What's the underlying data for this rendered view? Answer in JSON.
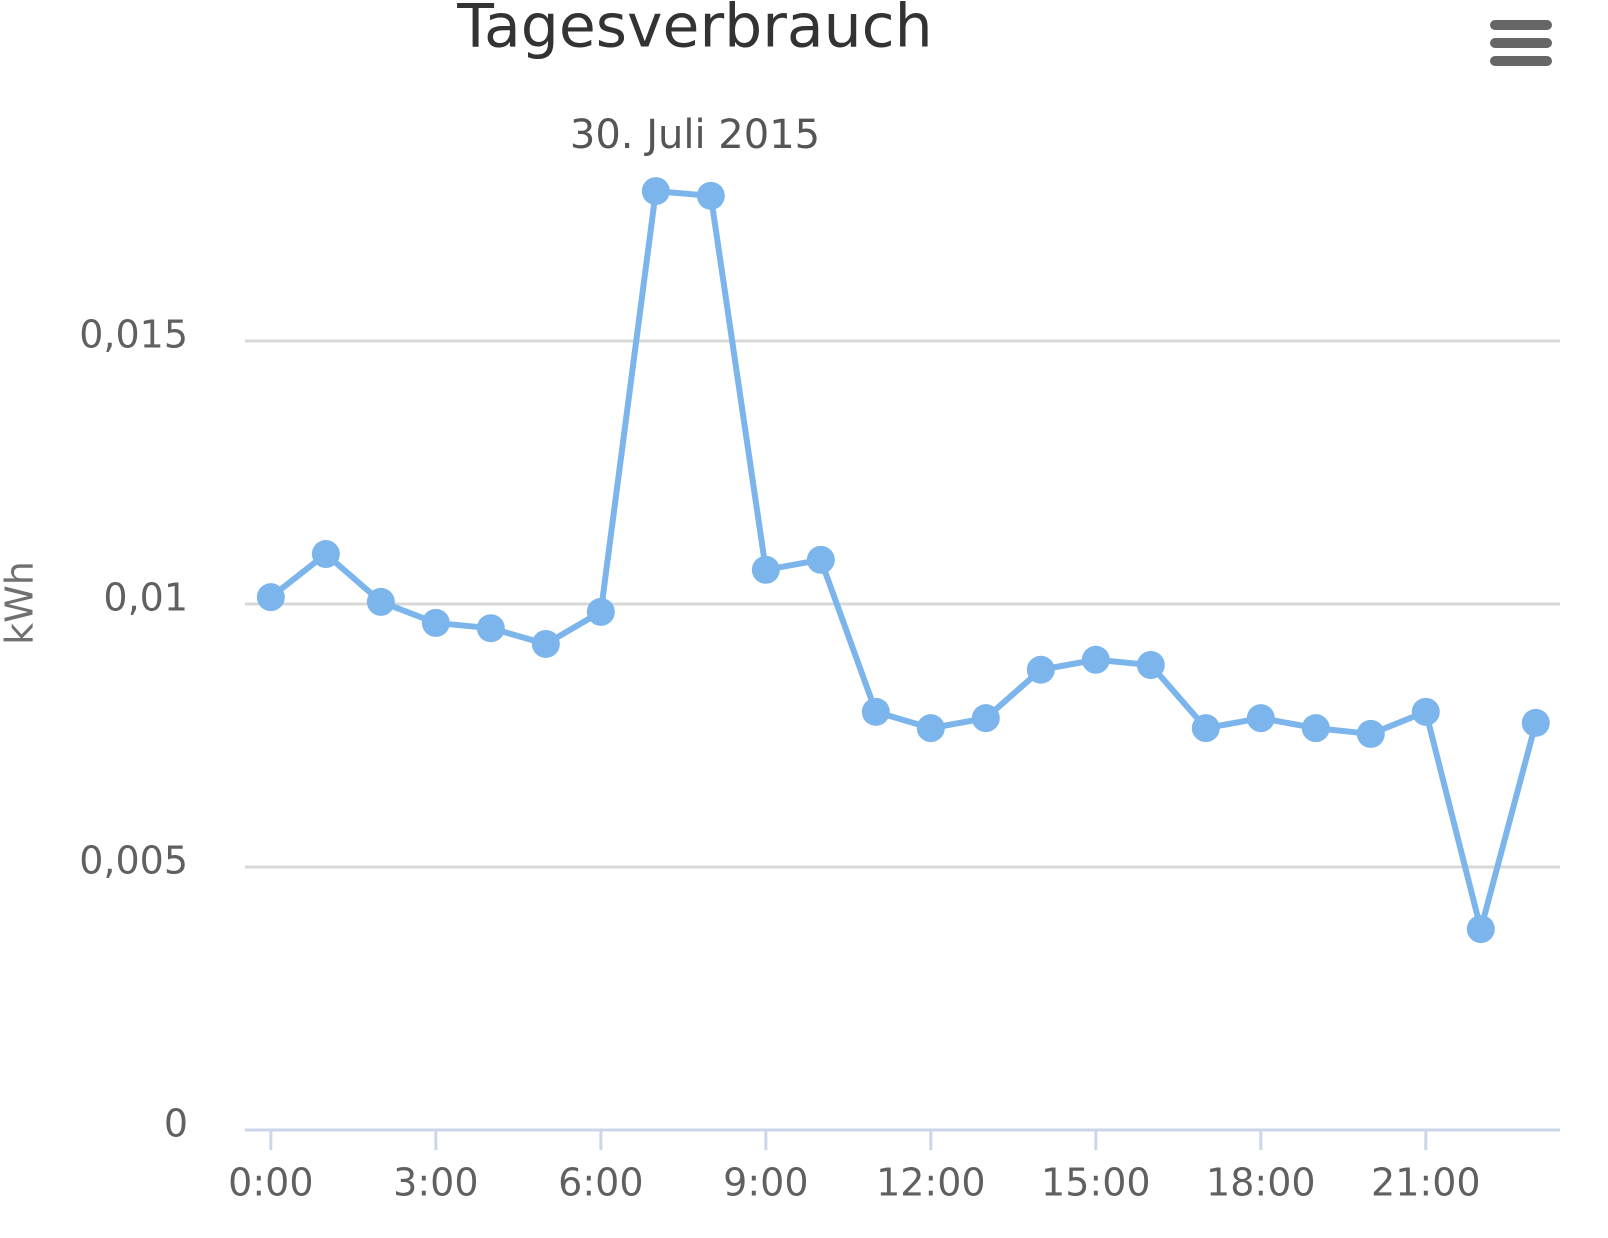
{
  "chart_data": {
    "type": "line",
    "title": "Tagesverbrauch",
    "subtitle": "30. Juli 2015",
    "y_axis_label": "kWh",
    "x": [
      0,
      1,
      2,
      3,
      4,
      5,
      6,
      7,
      8,
      9,
      10,
      11,
      12,
      13,
      14,
      15,
      16,
      17,
      18,
      19,
      20,
      21,
      22,
      23
    ],
    "series": [
      {
        "color": "#7cb5ec",
        "values": [
          0.01013,
          0.01095,
          0.01004,
          0.00964,
          0.00954,
          0.00924,
          0.00985,
          0.01785,
          0.01776,
          0.01065,
          0.01084,
          0.00795,
          0.00764,
          0.00783,
          0.00875,
          0.00894,
          0.00884,
          0.00764,
          0.00783,
          0.00764,
          0.00753,
          0.00795,
          0.00382,
          0.00774
        ]
      }
    ],
    "xlim": [
      -0.47,
      23.44
    ],
    "xticks": [
      {
        "value": 0,
        "label": "0:00"
      },
      {
        "value": 3,
        "label": "3:00"
      },
      {
        "value": 6,
        "label": "6:00"
      },
      {
        "value": 9,
        "label": "9:00"
      },
      {
        "value": 12,
        "label": "12:00"
      },
      {
        "value": 15,
        "label": "15:00"
      },
      {
        "value": 18,
        "label": "18:00"
      },
      {
        "value": 21,
        "label": "21:00"
      }
    ],
    "ylim": [
      0,
      0.02
    ],
    "yticks": [
      0,
      {
        "value": 0.005,
        "label": "0,005"
      },
      {
        "value": 0.01,
        "label": "0,01"
      },
      {
        "value": 0.015,
        "label": "0,015"
      }
    ],
    "grid": true
  }
}
